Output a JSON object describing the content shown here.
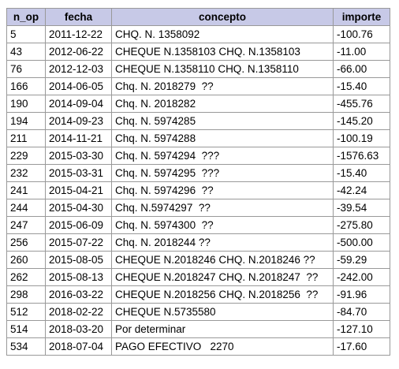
{
  "table": {
    "headers": [
      "n_op",
      "fecha",
      "concepto",
      "importe"
    ],
    "rows": [
      [
        "5",
        "2011-12-22",
        "CHQ. N. 1358092",
        "-100.76"
      ],
      [
        "43",
        "2012-06-22",
        "CHEQUE N.1358103 CHQ. N.1358103",
        "-11.00"
      ],
      [
        "76",
        "2012-12-03",
        "CHEQUE N.1358110 CHQ. N.1358110",
        "-66.00"
      ],
      [
        "166",
        "2014-06-05",
        "Chq. N. 2018279  ??",
        "-15.40"
      ],
      [
        "190",
        "2014-09-04",
        "Chq. N. 2018282",
        "-455.76"
      ],
      [
        "194",
        "2014-09-23",
        "Chq. N. 5974285",
        "-145.20"
      ],
      [
        "211",
        "2014-11-21",
        "Chq. N. 5974288",
        "-100.19"
      ],
      [
        "229",
        "2015-03-30",
        "Chq. N. 5974294  ???",
        "-1576.63"
      ],
      [
        "232",
        "2015-03-31",
        "Chq. N. 5974295  ???",
        "-15.40"
      ],
      [
        "241",
        "2015-04-21",
        "Chq. N. 5974296  ??",
        "-42.24"
      ],
      [
        "244",
        "2015-04-30",
        "Chq. N.5974297  ??",
        "-39.54"
      ],
      [
        "247",
        "2015-06-09",
        "Chq. N. 5974300  ??",
        "-275.80"
      ],
      [
        "256",
        "2015-07-22",
        "Chq. N. 2018244 ??",
        "-500.00"
      ],
      [
        "260",
        "2015-08-05",
        "CHEQUE N.2018246 CHQ. N.2018246 ??",
        "-59.29"
      ],
      [
        "262",
        "2015-08-13",
        "CHEQUE N.2018247 CHQ. N.2018247  ??",
        "-242.00"
      ],
      [
        "298",
        "2016-03-22",
        "CHEQUE N.2018256 CHQ. N.2018256  ??",
        "-91.96"
      ],
      [
        "512",
        "2018-02-22",
        "CHEQUE N.5735580",
        "-84.70"
      ],
      [
        "514",
        "2018-03-20",
        "Por determinar",
        "-127.10"
      ],
      [
        "534",
        "2018-07-04",
        "PAGO EFECTIVO   2270",
        "-17.60"
      ]
    ]
  },
  "colors": {
    "header_bg": "#c7c9e7",
    "border": "#999999"
  }
}
